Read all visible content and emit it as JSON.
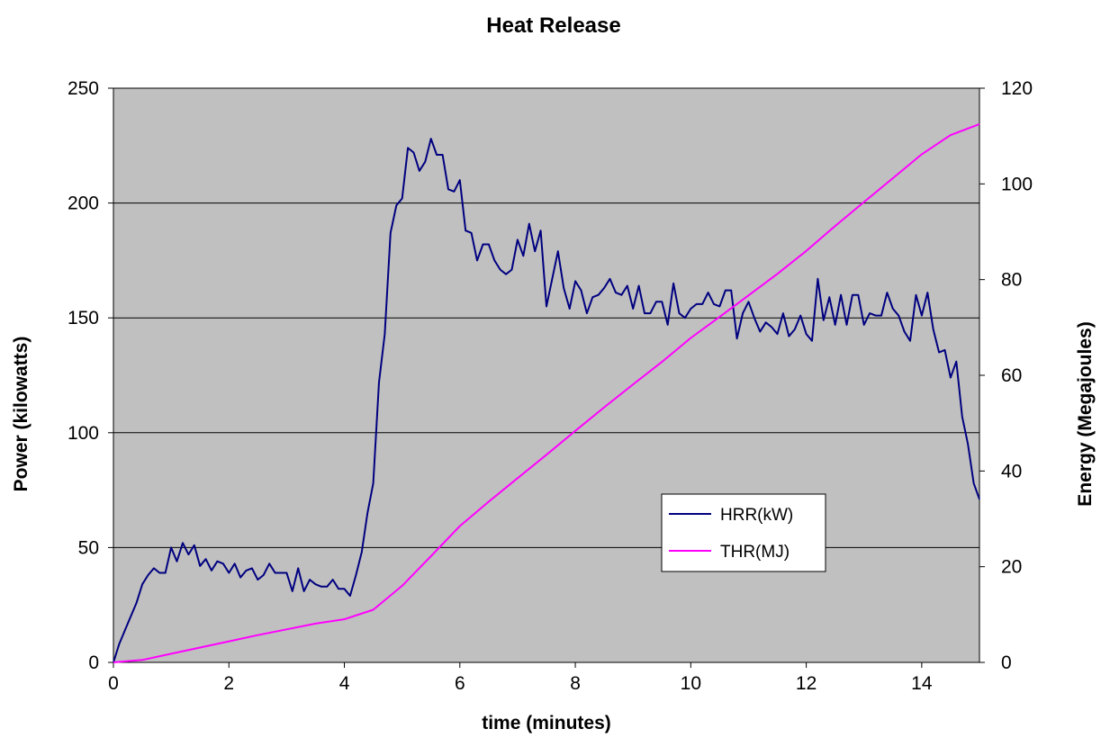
{
  "chart_data": {
    "type": "line",
    "title": "Heat Release",
    "xlabel": "time (minutes)",
    "ylabel": "Power (kilowatts)",
    "y2label": "Energy (Megajoules)",
    "xlim": [
      0,
      15
    ],
    "ylim": [
      0,
      250
    ],
    "y2lim": [
      0,
      120
    ],
    "xticks": [
      0,
      2,
      4,
      6,
      8,
      10,
      12,
      14
    ],
    "yticks": [
      0,
      50,
      100,
      150,
      200,
      250
    ],
    "y2ticks": [
      0,
      20,
      40,
      60,
      80,
      100,
      120
    ],
    "grid": "horizontal",
    "legend_position": "center-right",
    "plot_background": "#c0c0c0",
    "series": [
      {
        "name": "HRR(kW)",
        "axis": "left",
        "color": "#000080",
        "x": [
          0,
          0.1,
          0.2,
          0.3,
          0.4,
          0.5,
          0.6,
          0.7,
          0.8,
          0.9,
          1.0,
          1.1,
          1.2,
          1.3,
          1.4,
          1.5,
          1.6,
          1.7,
          1.8,
          1.9,
          2.0,
          2.1,
          2.2,
          2.3,
          2.4,
          2.5,
          2.6,
          2.7,
          2.8,
          2.9,
          3.0,
          3.1,
          3.2,
          3.3,
          3.4,
          3.5,
          3.6,
          3.7,
          3.8,
          3.9,
          4.0,
          4.1,
          4.2,
          4.3,
          4.4,
          4.5,
          4.6,
          4.7,
          4.8,
          4.9,
          5.0,
          5.1,
          5.2,
          5.3,
          5.4,
          5.5,
          5.6,
          5.7,
          5.8,
          5.9,
          6.0,
          6.1,
          6.2,
          6.3,
          6.4,
          6.5,
          6.6,
          6.7,
          6.8,
          6.9,
          7.0,
          7.1,
          7.2,
          7.3,
          7.4,
          7.5,
          7.6,
          7.7,
          7.8,
          7.9,
          8.0,
          8.1,
          8.2,
          8.3,
          8.4,
          8.5,
          8.6,
          8.7,
          8.8,
          8.9,
          9.0,
          9.1,
          9.2,
          9.3,
          9.4,
          9.5,
          9.6,
          9.7,
          9.8,
          9.9,
          10.0,
          10.1,
          10.2,
          10.3,
          10.4,
          10.5,
          10.6,
          10.7,
          10.8,
          10.9,
          11.0,
          11.1,
          11.2,
          11.3,
          11.4,
          11.5,
          11.6,
          11.7,
          11.8,
          11.9,
          12.0,
          12.1,
          12.2,
          12.3,
          12.4,
          12.5,
          12.6,
          12.7,
          12.8,
          12.9,
          13.0,
          13.1,
          13.2,
          13.3,
          13.4,
          13.5,
          13.6,
          13.7,
          13.8,
          13.9,
          14.0,
          14.1,
          14.2,
          14.3,
          14.4,
          14.5,
          14.6,
          14.7,
          14.8,
          14.9,
          15.0
        ],
        "y": [
          0,
          8,
          14,
          20,
          26,
          34,
          38,
          41,
          39,
          39,
          50,
          44,
          52,
          47,
          51,
          42,
          45,
          40,
          44,
          43,
          39,
          43,
          37,
          40,
          41,
          36,
          38,
          43,
          39,
          39,
          39,
          31,
          41,
          31,
          36,
          34,
          33,
          33,
          36,
          32,
          32,
          29,
          38,
          48,
          65,
          78,
          122,
          143,
          187,
          199,
          202,
          224,
          222,
          214,
          218,
          228,
          221,
          221,
          206,
          205,
          210,
          188,
          187,
          175,
          182,
          182,
          175,
          171,
          169,
          171,
          184,
          177,
          191,
          179,
          188,
          155,
          167,
          179,
          163,
          154,
          166,
          162,
          152,
          159,
          160,
          163,
          167,
          161,
          160,
          164,
          154,
          164,
          152,
          152,
          157,
          157,
          147,
          165,
          152,
          150,
          154,
          156,
          156,
          161,
          156,
          155,
          162,
          162,
          141,
          152,
          157,
          150,
          144,
          148,
          146,
          143,
          152,
          142,
          145,
          151,
          143,
          140,
          167,
          149,
          159,
          147,
          160,
          147,
          160,
          160,
          147,
          152,
          151,
          151,
          161,
          154,
          151,
          144,
          140,
          160,
          151,
          161,
          145,
          135,
          136,
          124,
          131,
          107,
          95,
          78,
          71
        ]
      },
      {
        "name": "THR(MJ)",
        "axis": "right",
        "color": "#ff00ff",
        "x": [
          0,
          0.5,
          1.0,
          1.5,
          2.0,
          2.5,
          3.0,
          3.5,
          4.0,
          4.5,
          5.0,
          5.5,
          6.0,
          6.5,
          7.0,
          7.5,
          8.0,
          8.5,
          9.0,
          9.5,
          10.0,
          10.5,
          11.0,
          11.5,
          12.0,
          12.5,
          13.0,
          13.5,
          14.0,
          14.5,
          15.0
        ],
        "y": [
          0,
          0.5,
          1.8,
          3.1,
          4.4,
          5.7,
          6.9,
          8.1,
          9.0,
          11.0,
          16.0,
          22.2,
          28.5,
          33.6,
          38.5,
          43.4,
          48.4,
          53.3,
          58.1,
          62.8,
          67.8,
          72.2,
          76.7,
          81.2,
          86.0,
          91.2,
          96.2,
          101.2,
          106.2,
          110.2,
          112.5
        ]
      }
    ]
  }
}
